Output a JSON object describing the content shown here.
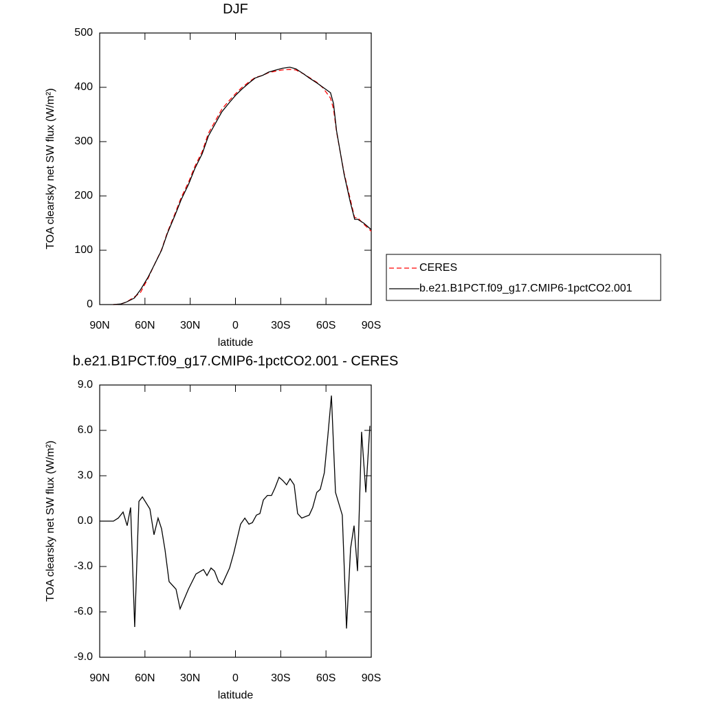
{
  "chart_data": [
    {
      "type": "line",
      "title": "DJF",
      "xlabel": "latitude",
      "ylabel": "TOA clearsky net SW flux (W/m²)",
      "x": [
        81,
        76,
        72,
        67,
        63,
        58,
        54,
        49,
        45,
        40,
        36,
        31,
        27,
        22,
        18,
        13,
        9,
        4,
        0,
        -4,
        -9,
        -13,
        -18,
        -22,
        -27,
        -31,
        -36,
        -40,
        -45,
        -49,
        -54,
        -58,
        -63,
        -65,
        -67,
        -72,
        -76,
        -79,
        -81,
        -85,
        -90
      ],
      "series": [
        {
          "name": "CERES",
          "color": "#ff0000",
          "dash": true,
          "values": [
            0,
            1,
            5,
            14,
            22,
            48,
            72,
            101,
            134,
            168,
            197,
            226,
            254,
            282,
            315,
            340,
            360,
            376,
            388,
            399,
            410,
            418,
            422,
            427,
            430,
            432,
            433,
            432,
            425,
            418,
            409,
            399,
            380,
            360,
            318,
            242,
            195,
            160,
            160,
            148,
            135
          ]
        },
        {
          "name": "b.e21.B1PCT.f09_g17.CMIP6-1pctCO2.001",
          "color": "#000000",
          "dash": false,
          "values": [
            0,
            1,
            5,
            12,
            27,
            50,
            72,
            100,
            132,
            165,
            193,
            222,
            250,
            278,
            310,
            335,
            355,
            372,
            385,
            396,
            408,
            417,
            422,
            428,
            432,
            435,
            437,
            434,
            425,
            417,
            408,
            400,
            390,
            370,
            320,
            240,
            190,
            157,
            157,
            150,
            138
          ]
        }
      ],
      "xlim": [
        90,
        -90
      ],
      "xticks": [
        {
          "value": 90,
          "label": "90N"
        },
        {
          "value": 60,
          "label": "60N"
        },
        {
          "value": 30,
          "label": "30N"
        },
        0,
        {
          "value": -30,
          "label": "30S"
        },
        {
          "value": -60,
          "label": "60S"
        },
        {
          "value": -90,
          "label": "90S"
        }
      ],
      "ylim": [
        0,
        500
      ],
      "yticks": [
        0,
        100,
        200,
        300,
        400,
        500
      ],
      "legend": "right"
    },
    {
      "type": "line",
      "title": "b.e21.B1PCT.f09_g17.CMIP6-1pctCO2.001 - CERES",
      "xlabel": "latitude",
      "ylabel": "TOA clearsky net SW flux (W/m²)",
      "x": [
        90,
        80.9,
        77.7,
        74.5,
        71.8,
        69.5,
        66.8,
        64.0,
        61.7,
        56.7,
        54.0,
        51.3,
        49.0,
        46.7,
        44.0,
        39.4,
        36.7,
        31.2,
        26.2,
        21.2,
        18.9,
        16.2,
        13.9,
        11.2,
        8.9,
        3.9,
        1.1,
        -3.4,
        -6.2,
        -8.9,
        -11.2,
        -13.9,
        -16.2,
        -18.5,
        -21.2,
        -23.9,
        -26.2,
        -28.9,
        -31.2,
        -33.9,
        -36.2,
        -38.9,
        -41.2,
        -43.9,
        -48.9,
        -51.2,
        -53.9,
        -56.2,
        -58.9,
        -61.2,
        -63.6,
        -66.3,
        -70.8,
        -73.6,
        -76.3,
        -78.6,
        -80.9,
        -83.6,
        -86.4,
        -89.1
      ],
      "values": [
        0,
        0,
        0.2,
        0.6,
        -0.3,
        0.9,
        -7.0,
        1.3,
        1.6,
        0.8,
        -0.9,
        0.2,
        -0.5,
        -1.9,
        -4.0,
        -4.5,
        -5.8,
        -4.5,
        -3.5,
        -3.2,
        -3.6,
        -3.1,
        -3.3,
        -4.0,
        -4.2,
        -3.1,
        -2.1,
        -0.2,
        0.2,
        -0.2,
        -0.1,
        0.4,
        0.5,
        1.4,
        1.7,
        1.7,
        2.2,
        2.9,
        2.7,
        2.4,
        2.8,
        2.4,
        0.5,
        0.2,
        0.4,
        0.9,
        1.9,
        2.1,
        3.2,
        5.6,
        8.3,
        1.9,
        0.4,
        -7.1,
        -1.8,
        -0.3,
        -3.3,
        5.9,
        1.9,
        6.3
      ],
      "color": "#000000",
      "xlim": [
        90,
        -90
      ],
      "xticks": [
        {
          "value": 90,
          "label": "90N"
        },
        {
          "value": 60,
          "label": "60N"
        },
        {
          "value": 30,
          "label": "30N"
        },
        0,
        {
          "value": -30,
          "label": "30S"
        },
        {
          "value": -60,
          "label": "60S"
        },
        {
          "value": -90,
          "label": "90S"
        }
      ],
      "ylim": [
        -9,
        9
      ],
      "yticks": [
        {
          "value": -9,
          "label": "-9.0"
        },
        {
          "value": -6,
          "label": "-6.0"
        },
        {
          "value": -3,
          "label": "-3.0"
        },
        {
          "value": 0,
          "label": "0.0"
        },
        {
          "value": 3,
          "label": "3.0"
        },
        {
          "value": 6,
          "label": "6.0"
        },
        {
          "value": 9,
          "label": "9.0"
        }
      ]
    }
  ]
}
